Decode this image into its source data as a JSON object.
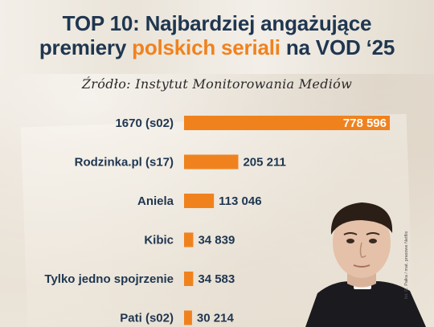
{
  "title": {
    "line1": "TOP 10: Najbardziej angażujące",
    "line2_pre": "premiery ",
    "line2_accent": "polskich seriali",
    "line2_post": " na VOD ‘25"
  },
  "source": "Źródło: Instytut Monitorowania Mediów",
  "photo_credit": "fot. R. Pałka / mat. prasowe Netflix",
  "colors": {
    "bar": "#f0821e",
    "title": "#1f3650",
    "accent": "#f0821e"
  },
  "chart_data": {
    "type": "bar",
    "orientation": "horizontal",
    "title": "TOP 10: Najbardziej angażujące premiery polskich seriali na VOD ‘25",
    "categories": [
      "1670 (s02)",
      "Rodzinka.pl (s17)",
      "Aniela",
      "Kibic",
      "Tylko jedno spojrzenie",
      "Pati (s02)"
    ],
    "values": [
      778596,
      205211,
      113046,
      34839,
      34583,
      30214
    ],
    "value_labels": [
      "778 596",
      "205 211",
      "113 046",
      "34 839",
      "34 583",
      "30 214"
    ],
    "xlim": [
      0,
      778596
    ],
    "grid": false,
    "legend": "none"
  }
}
